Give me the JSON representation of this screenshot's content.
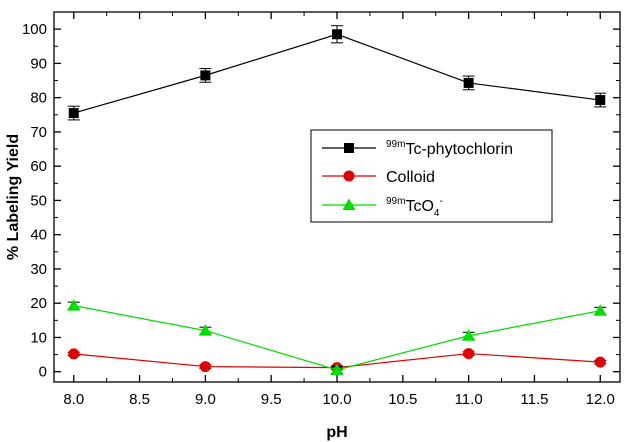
{
  "chart_data": {
    "type": "line",
    "xlabel": "pH",
    "ylabel": "% Labeling Yield",
    "xlim": [
      7.85,
      12.15
    ],
    "ylim": [
      -3,
      105
    ],
    "x_ticks": [
      "8.0",
      "8.5",
      "9.0",
      "9.5",
      "10.0",
      "10.5",
      "11.0",
      "11.5",
      "12.0"
    ],
    "y_ticks": [
      "0",
      "10",
      "20",
      "30",
      "40",
      "50",
      "60",
      "70",
      "80",
      "90",
      "100"
    ],
    "x": [
      8.0,
      9.0,
      10.0,
      11.0,
      12.0
    ],
    "series": [
      {
        "name_sup": "99m",
        "name": "Tc-phytochlorin",
        "color": "#000000",
        "marker": "square",
        "values": [
          75.5,
          86.5,
          98.5,
          84.3,
          79.3
        ],
        "errors": [
          2,
          2,
          2.5,
          2,
          2
        ]
      },
      {
        "name": "Colloid",
        "color": "#e00000",
        "marker": "circle",
        "values": [
          5.2,
          1.5,
          1.2,
          5.3,
          2.8
        ],
        "errors": [
          0.5,
          0.5,
          0.5,
          0.5,
          0.5
        ]
      },
      {
        "name_sup": "99m",
        "name": "TcO",
        "name_sub": "4",
        "name_sup2": "-",
        "color": "#00dd00",
        "marker": "triangle",
        "values": [
          19.3,
          12.0,
          0.5,
          10.5,
          17.8
        ],
        "errors": [
          1,
          1,
          1,
          1,
          1
        ]
      }
    ],
    "legend_position": "middle-right"
  }
}
